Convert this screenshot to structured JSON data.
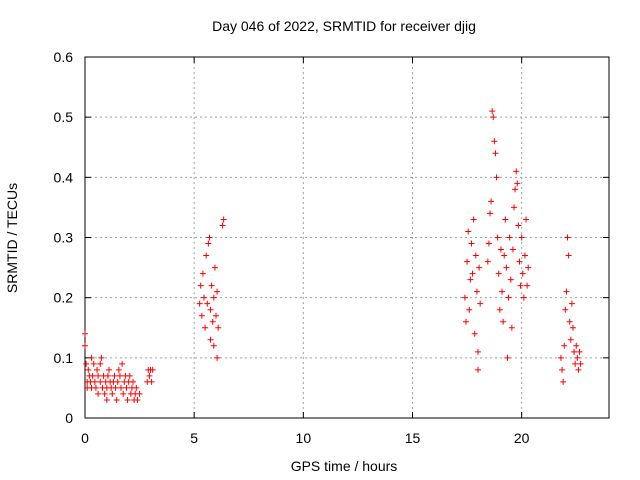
{
  "chart_data": {
    "type": "scatter",
    "title": "Day 046 of 2022, SRMTID for receiver djig",
    "xlabel": "GPS time / hours",
    "ylabel": "SRMTID / TECUs",
    "xlim": [
      0,
      24
    ],
    "ylim": [
      0,
      0.6
    ],
    "x_ticks": [
      0,
      5,
      10,
      15,
      20
    ],
    "x_tick_labels": [
      "0",
      "5",
      "10",
      "15",
      "20"
    ],
    "y_ticks": [
      0,
      0.1,
      0.2,
      0.3,
      0.4,
      0.5,
      0.6
    ],
    "y_tick_labels": [
      "0",
      "0.1",
      "0.2",
      "0.3",
      "0.4",
      "0.5",
      "0.6"
    ],
    "grid": true,
    "marker": "+",
    "series": [
      {
        "name": "SRMTID",
        "color": "#ff0000",
        "points": [
          [
            0.0,
            0.14
          ],
          [
            0.0,
            0.12
          ],
          [
            0.05,
            0.09
          ],
          [
            0.1,
            0.06
          ],
          [
            0.1,
            0.05
          ],
          [
            0.15,
            0.08
          ],
          [
            0.2,
            0.07
          ],
          [
            0.25,
            0.06
          ],
          [
            0.3,
            0.1
          ],
          [
            0.3,
            0.05
          ],
          [
            0.35,
            0.07
          ],
          [
            0.4,
            0.09
          ],
          [
            0.45,
            0.06
          ],
          [
            0.5,
            0.05
          ],
          [
            0.55,
            0.08
          ],
          [
            0.6,
            0.07
          ],
          [
            0.6,
            0.04
          ],
          [
            0.7,
            0.06
          ],
          [
            0.7,
            0.09
          ],
          [
            0.75,
            0.1
          ],
          [
            0.8,
            0.05
          ],
          [
            0.85,
            0.07
          ],
          [
            0.9,
            0.04
          ],
          [
            0.95,
            0.06
          ],
          [
            1.0,
            0.03
          ],
          [
            1.0,
            0.05
          ],
          [
            1.05,
            0.07
          ],
          [
            1.1,
            0.08
          ],
          [
            1.15,
            0.06
          ],
          [
            1.2,
            0.05
          ],
          [
            1.25,
            0.04
          ],
          [
            1.3,
            0.06
          ],
          [
            1.35,
            0.07
          ],
          [
            1.4,
            0.05
          ],
          [
            1.45,
            0.03
          ],
          [
            1.5,
            0.06
          ],
          [
            1.55,
            0.08
          ],
          [
            1.6,
            0.07
          ],
          [
            1.65,
            0.05
          ],
          [
            1.7,
            0.09
          ],
          [
            1.75,
            0.04
          ],
          [
            1.8,
            0.06
          ],
          [
            1.85,
            0.07
          ],
          [
            1.9,
            0.05
          ],
          [
            1.95,
            0.03
          ],
          [
            2.0,
            0.06
          ],
          [
            2.05,
            0.07
          ],
          [
            2.1,
            0.04
          ],
          [
            2.15,
            0.05
          ],
          [
            2.2,
            0.06
          ],
          [
            2.25,
            0.03
          ],
          [
            2.3,
            0.04
          ],
          [
            2.35,
            0.05
          ],
          [
            2.4,
            0.03
          ],
          [
            2.5,
            0.04
          ],
          [
            2.85,
            0.06
          ],
          [
            2.9,
            0.08
          ],
          [
            2.95,
            0.07
          ],
          [
            3.0,
            0.08
          ],
          [
            3.05,
            0.06
          ],
          [
            3.1,
            0.08
          ],
          [
            5.25,
            0.19
          ],
          [
            5.3,
            0.22
          ],
          [
            5.35,
            0.17
          ],
          [
            5.4,
            0.24
          ],
          [
            5.45,
            0.2
          ],
          [
            5.5,
            0.15
          ],
          [
            5.55,
            0.27
          ],
          [
            5.6,
            0.19
          ],
          [
            5.65,
            0.29
          ],
          [
            5.7,
            0.3
          ],
          [
            5.75,
            0.18
          ],
          [
            5.75,
            0.13
          ],
          [
            5.8,
            0.22
          ],
          [
            5.85,
            0.16
          ],
          [
            5.9,
            0.2
          ],
          [
            5.9,
            0.12
          ],
          [
            5.95,
            0.25
          ],
          [
            6.0,
            0.17
          ],
          [
            6.05,
            0.21
          ],
          [
            6.05,
            0.1
          ],
          [
            6.1,
            0.15
          ],
          [
            6.3,
            0.32
          ],
          [
            6.35,
            0.33
          ],
          [
            17.4,
            0.2
          ],
          [
            17.45,
            0.16
          ],
          [
            17.5,
            0.26
          ],
          [
            17.55,
            0.31
          ],
          [
            17.6,
            0.18
          ],
          [
            17.65,
            0.23
          ],
          [
            17.7,
            0.29
          ],
          [
            17.75,
            0.24
          ],
          [
            17.8,
            0.33
          ],
          [
            17.85,
            0.14
          ],
          [
            17.9,
            0.27
          ],
          [
            17.95,
            0.21
          ],
          [
            18.0,
            0.11
          ],
          [
            18.0,
            0.08
          ],
          [
            18.05,
            0.25
          ],
          [
            18.1,
            0.19
          ],
          [
            18.45,
            0.26
          ],
          [
            18.5,
            0.29
          ],
          [
            18.55,
            0.34
          ],
          [
            18.6,
            0.36
          ],
          [
            18.65,
            0.51
          ],
          [
            18.7,
            0.5
          ],
          [
            18.75,
            0.46
          ],
          [
            18.8,
            0.44
          ],
          [
            18.85,
            0.4
          ],
          [
            18.9,
            0.3
          ],
          [
            18.95,
            0.24
          ],
          [
            19.0,
            0.18
          ],
          [
            19.05,
            0.28
          ],
          [
            19.1,
            0.21
          ],
          [
            19.15,
            0.16
          ],
          [
            19.2,
            0.27
          ],
          [
            19.25,
            0.33
          ],
          [
            19.3,
            0.25
          ],
          [
            19.35,
            0.1
          ],
          [
            19.4,
            0.2
          ],
          [
            19.45,
            0.3
          ],
          [
            19.5,
            0.23
          ],
          [
            19.55,
            0.15
          ],
          [
            19.6,
            0.28
          ],
          [
            19.65,
            0.35
          ],
          [
            19.7,
            0.38
          ],
          [
            19.75,
            0.41
          ],
          [
            19.8,
            0.39
          ],
          [
            19.85,
            0.32
          ],
          [
            19.9,
            0.26
          ],
          [
            19.95,
            0.22
          ],
          [
            20.0,
            0.3
          ],
          [
            20.05,
            0.24
          ],
          [
            20.1,
            0.2
          ],
          [
            20.15,
            0.27
          ],
          [
            20.2,
            0.33
          ],
          [
            20.25,
            0.22
          ],
          [
            20.3,
            0.25
          ],
          [
            21.8,
            0.1
          ],
          [
            21.85,
            0.08
          ],
          [
            21.9,
            0.06
          ],
          [
            21.95,
            0.12
          ],
          [
            22.0,
            0.18
          ],
          [
            22.05,
            0.21
          ],
          [
            22.1,
            0.3
          ],
          [
            22.15,
            0.27
          ],
          [
            22.2,
            0.16
          ],
          [
            22.25,
            0.13
          ],
          [
            22.3,
            0.19
          ],
          [
            22.35,
            0.15
          ],
          [
            22.4,
            0.11
          ],
          [
            22.45,
            0.09
          ],
          [
            22.5,
            0.12
          ],
          [
            22.55,
            0.1
          ],
          [
            22.6,
            0.08
          ],
          [
            22.65,
            0.11
          ],
          [
            22.7,
            0.09
          ]
        ]
      }
    ]
  }
}
